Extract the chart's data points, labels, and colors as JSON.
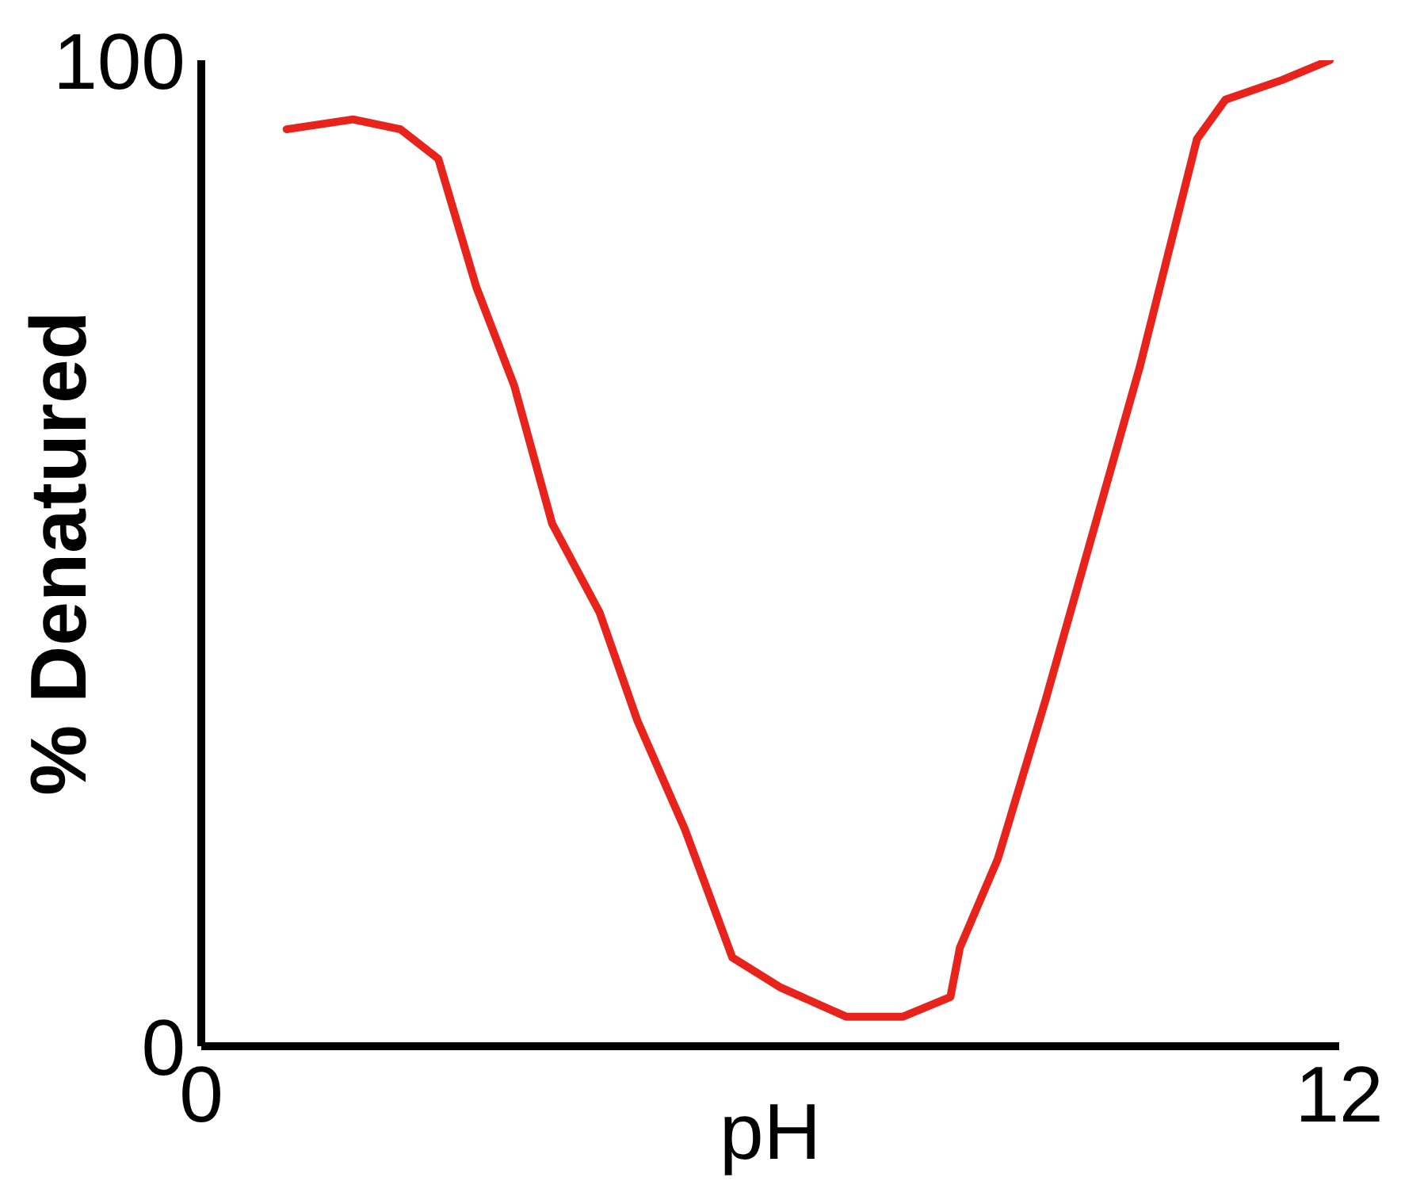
{
  "chart_data": {
    "type": "line",
    "xlabel": "pH",
    "ylabel": "% Denatured",
    "xlim": [
      0,
      12
    ],
    "xticks": [
      0,
      12
    ],
    "ylim": [
      0,
      100
    ],
    "yticks": [
      0,
      100
    ],
    "grid": false,
    "marker": "none",
    "line_style": "solid",
    "series": [
      {
        "color": "#e8231c",
        "x": [
          0.9,
          1.6,
          2.1,
          2.5,
          2.9,
          3.3,
          3.7,
          4.2,
          4.6,
          5.1,
          5.6,
          6.1,
          6.8,
          7.4,
          7.9,
          8.0,
          8.4,
          8.9,
          9.4,
          9.9,
          10.5,
          10.8,
          11.4,
          11.9
        ],
        "values": [
          93,
          94,
          93,
          90,
          77,
          67,
          53,
          44,
          33,
          22,
          9,
          6,
          3,
          3,
          5,
          10,
          19,
          35,
          52,
          69,
          92,
          96,
          98,
          100
        ]
      }
    ]
  }
}
